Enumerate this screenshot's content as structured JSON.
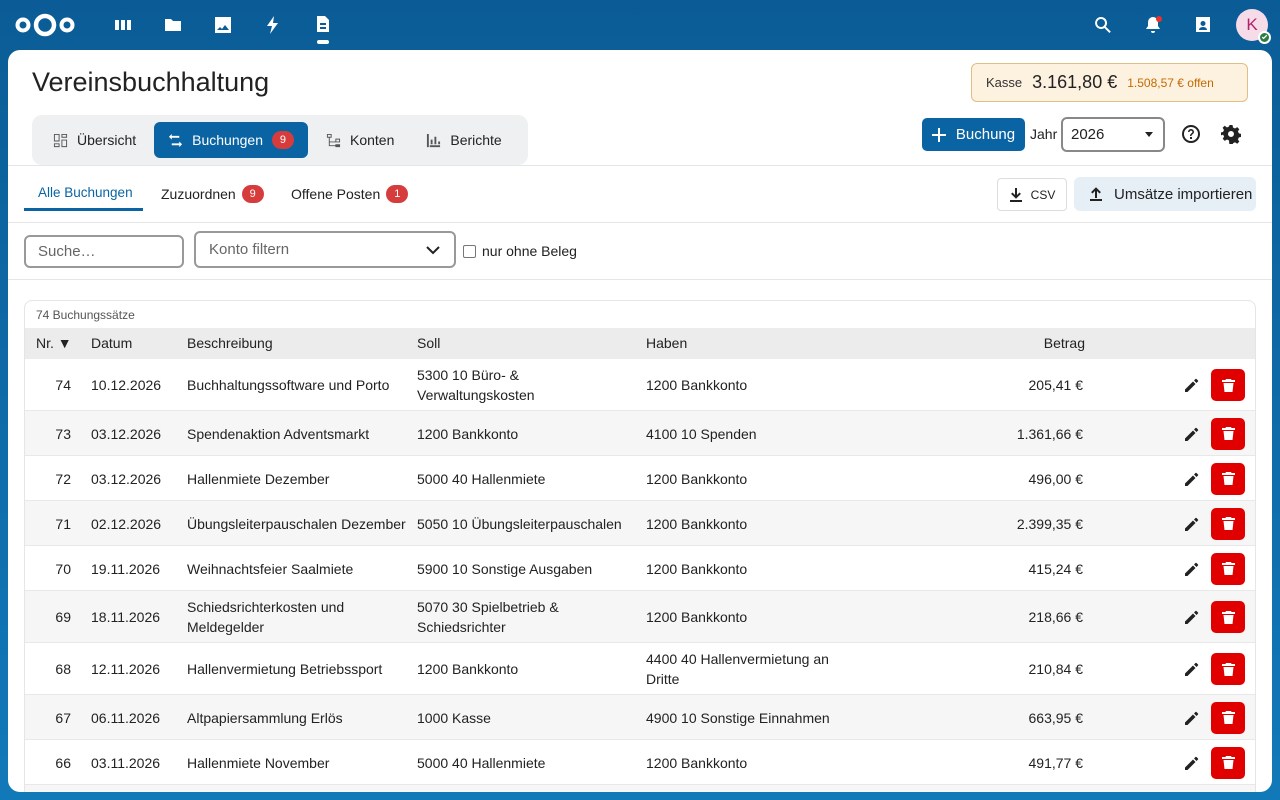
{
  "header": {
    "apps": [
      {
        "name": "dashboard-icon"
      },
      {
        "name": "files-icon"
      },
      {
        "name": "photos-icon"
      },
      {
        "name": "activity-icon"
      },
      {
        "name": "buchhaltung-app-icon"
      }
    ]
  },
  "user": {
    "initial": "K"
  },
  "page": {
    "title": "Vereinsbuchhaltung"
  },
  "kasse": {
    "label": "Kasse",
    "amount": "3.161,80 €",
    "open": "1.508,57 € offen"
  },
  "tabs": [
    {
      "label": "Übersicht"
    },
    {
      "label": "Buchungen",
      "count": "9"
    },
    {
      "label": "Konten"
    },
    {
      "label": "Berichte"
    }
  ],
  "toolbar": {
    "new_booking": "Buchung",
    "year_label": "Jahr",
    "year_value": "2026"
  },
  "subtabs": [
    {
      "label": "Alle Buchungen"
    },
    {
      "label": "Zuzuordnen",
      "count": "9"
    },
    {
      "label": "Offene Posten",
      "count": "1"
    }
  ],
  "actions": {
    "csv": "CSV",
    "import": "Umsätze importieren"
  },
  "filters": {
    "search_placeholder": "Suche…",
    "konto_placeholder": "Konto filtern",
    "nur_ohne_beleg": "nur ohne Beleg"
  },
  "table": {
    "count_label": "74 Buchungssätze",
    "headers": {
      "nr": "Nr. ▼",
      "datum": "Datum",
      "beschreibung": "Beschreibung",
      "soll": "Soll",
      "haben": "Haben",
      "betrag": "Betrag"
    },
    "rows": [
      {
        "nr": "74",
        "datum": "10.12.2026",
        "beschreibung": "Buchhaltungssoftware und Porto",
        "soll": "5300 10 Büro- & Verwaltungskosten",
        "haben": "1200 Bankkonto",
        "betrag": "205,41  €"
      },
      {
        "nr": "73",
        "datum": "03.12.2026",
        "beschreibung": "Spendenaktion Adventsmarkt",
        "soll": "1200 Bankkonto",
        "haben": "4100 10 Spenden",
        "betrag": "1.361,66  €"
      },
      {
        "nr": "72",
        "datum": "03.12.2026",
        "beschreibung": "Hallenmiete Dezember",
        "soll": "5000 40 Hallenmiete",
        "haben": "1200 Bankkonto",
        "betrag": "496,00  €"
      },
      {
        "nr": "71",
        "datum": "02.12.2026",
        "beschreibung": "Übungsleiterpauschalen Dezember",
        "soll": "5050 10 Übungsleiterpauschalen",
        "haben": "1200 Bankkonto",
        "betrag": "2.399,35  €"
      },
      {
        "nr": "70",
        "datum": "19.11.2026",
        "beschreibung": "Weihnachtsfeier Saalmiete",
        "soll": "5900 10 Sonstige Ausgaben",
        "haben": "1200 Bankkonto",
        "betrag": "415,24  €"
      },
      {
        "nr": "69",
        "datum": "18.11.2026",
        "beschreibung": "Schiedsrichterkosten und Meldegelder",
        "soll": "5070 30 Spielbetrieb & Schiedsrichter",
        "haben": "1200 Bankkonto",
        "betrag": "218,66  €"
      },
      {
        "nr": "68",
        "datum": "12.11.2026",
        "beschreibung": "Hallenvermietung Betriebssport",
        "soll": "1200 Bankkonto",
        "haben": "4400 40 Hallenvermietung an Dritte",
        "betrag": "210,84  €"
      },
      {
        "nr": "67",
        "datum": "06.11.2026",
        "beschreibung": "Altpapiersammlung Erlös",
        "soll": "1000 Kasse",
        "haben": "4900 10 Sonstige Einnahmen",
        "betrag": "663,95  €"
      },
      {
        "nr": "66",
        "datum": "03.11.2026",
        "beschreibung": "Hallenmiete November",
        "soll": "5000 40 Hallenmiete",
        "haben": "1200 Bankkonto",
        "betrag": "491,77  €"
      },
      {
        "nr": "",
        "datum": "",
        "beschreibung": "",
        "soll": "",
        "haben": "",
        "betrag": ""
      }
    ]
  }
}
